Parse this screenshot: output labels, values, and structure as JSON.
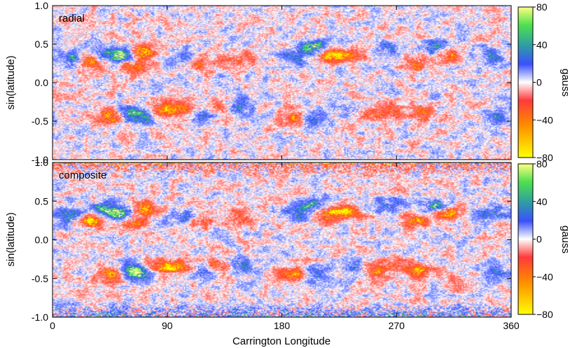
{
  "chart_data": [
    {
      "type": "heatmap",
      "panel_label": "radial",
      "ylabel": "sin(latitude)",
      "xlabel": "",
      "xlim": [
        0,
        360
      ],
      "ylim": [
        -1,
        1
      ],
      "x_ticks": [
        0,
        90,
        180,
        270,
        360
      ],
      "y_ticks": [
        "1.0",
        "0.5",
        "0.0",
        "-0.5",
        "-1.0"
      ],
      "colorbar": {
        "label": "gauss",
        "range": [
          -80,
          80
        ],
        "ticks": [
          "80",
          "40",
          "0",
          "−40",
          "−80"
        ]
      },
      "regions": [
        {
          "lon": 15,
          "lat": 0.3,
          "sign": 1,
          "peak": 60
        },
        {
          "lon": 28,
          "lat": 0.25,
          "sign": -1,
          "peak": 75
        },
        {
          "lon": 42,
          "lat": 0.4,
          "sign": 1,
          "peak": 55
        },
        {
          "lon": 55,
          "lat": 0.35,
          "sign": 1,
          "peak": 70
        },
        {
          "lon": 62,
          "lat": 0.2,
          "sign": -1,
          "peak": 60
        },
        {
          "lon": 70,
          "lat": 0.4,
          "sign": -1,
          "peak": 70
        },
        {
          "lon": 105,
          "lat": 0.3,
          "sign": 1,
          "peak": 40
        },
        {
          "lon": 115,
          "lat": 0.25,
          "sign": -1,
          "peak": 40
        },
        {
          "lon": 145,
          "lat": 0.3,
          "sign": -1,
          "peak": 45
        },
        {
          "lon": 190,
          "lat": 0.35,
          "sign": 1,
          "peak": 50
        },
        {
          "lon": 205,
          "lat": 0.45,
          "sign": 1,
          "peak": 80
        },
        {
          "lon": 215,
          "lat": 0.35,
          "sign": -1,
          "peak": 75
        },
        {
          "lon": 232,
          "lat": 0.35,
          "sign": -1,
          "peak": 60
        },
        {
          "lon": 262,
          "lat": 0.45,
          "sign": 1,
          "peak": 45
        },
        {
          "lon": 285,
          "lat": 0.25,
          "sign": -1,
          "peak": 60
        },
        {
          "lon": 300,
          "lat": 0.45,
          "sign": 1,
          "peak": 60
        },
        {
          "lon": 310,
          "lat": 0.35,
          "sign": -1,
          "peak": 55
        },
        {
          "lon": 345,
          "lat": 0.35,
          "sign": 1,
          "peak": 50
        },
        {
          "lon": 45,
          "lat": -0.45,
          "sign": -1,
          "peak": 70
        },
        {
          "lon": 60,
          "lat": -0.4,
          "sign": 1,
          "peak": 50
        },
        {
          "lon": 70,
          "lat": -0.45,
          "sign": 1,
          "peak": 50
        },
        {
          "lon": 85,
          "lat": -0.35,
          "sign": -1,
          "peak": 55
        },
        {
          "lon": 100,
          "lat": -0.35,
          "sign": -1,
          "peak": 60
        },
        {
          "lon": 118,
          "lat": -0.4,
          "sign": 1,
          "peak": 40
        },
        {
          "lon": 130,
          "lat": -0.32,
          "sign": -1,
          "peak": 50
        },
        {
          "lon": 145,
          "lat": -0.32,
          "sign": 1,
          "peak": 55
        },
        {
          "lon": 190,
          "lat": -0.45,
          "sign": -1,
          "peak": 60
        },
        {
          "lon": 205,
          "lat": -0.45,
          "sign": 1,
          "peak": 45
        },
        {
          "lon": 235,
          "lat": -0.35,
          "sign": 1,
          "peak": 45
        },
        {
          "lon": 250,
          "lat": -0.4,
          "sign": -1,
          "peak": 45
        },
        {
          "lon": 265,
          "lat": -0.35,
          "sign": -1,
          "peak": 45
        },
        {
          "lon": 290,
          "lat": -0.4,
          "sign": -1,
          "peak": 50
        },
        {
          "lon": 350,
          "lat": -0.45,
          "sign": 1,
          "peak": 40
        }
      ]
    },
    {
      "type": "heatmap",
      "panel_label": "composite",
      "ylabel": "sin(latitude)",
      "xlabel": "Carrington Longitude",
      "xlim": [
        0,
        360
      ],
      "ylim": [
        -1,
        1
      ],
      "x_ticks": [
        0,
        90,
        180,
        270,
        360
      ],
      "y_ticks": [
        "1.0",
        "0.5",
        "0.0",
        "-0.5",
        "-1.0"
      ],
      "colorbar": {
        "label": "gauss",
        "range": [
          -80,
          80
        ],
        "ticks": [
          "80",
          "40",
          "0",
          "−40",
          "−80"
        ]
      },
      "regions": [
        {
          "lon": 15,
          "lat": 0.3,
          "sign": 1,
          "peak": 65
        },
        {
          "lon": 28,
          "lat": 0.25,
          "sign": -1,
          "peak": 80
        },
        {
          "lon": 42,
          "lat": 0.4,
          "sign": 1,
          "peak": 60
        },
        {
          "lon": 55,
          "lat": 0.35,
          "sign": 1,
          "peak": 75
        },
        {
          "lon": 62,
          "lat": 0.2,
          "sign": -1,
          "peak": 70
        },
        {
          "lon": 70,
          "lat": 0.4,
          "sign": -1,
          "peak": 75
        },
        {
          "lon": 105,
          "lat": 0.3,
          "sign": 1,
          "peak": 45
        },
        {
          "lon": 115,
          "lat": 0.25,
          "sign": -1,
          "peak": 45
        },
        {
          "lon": 145,
          "lat": 0.3,
          "sign": -1,
          "peak": 50
        },
        {
          "lon": 190,
          "lat": 0.35,
          "sign": 1,
          "peak": 55
        },
        {
          "lon": 205,
          "lat": 0.45,
          "sign": 1,
          "peak": 80
        },
        {
          "lon": 215,
          "lat": 0.35,
          "sign": -1,
          "peak": 80
        },
        {
          "lon": 232,
          "lat": 0.35,
          "sign": -1,
          "peak": 65
        },
        {
          "lon": 262,
          "lat": 0.45,
          "sign": 1,
          "peak": 50
        },
        {
          "lon": 285,
          "lat": 0.25,
          "sign": -1,
          "peak": 65
        },
        {
          "lon": 300,
          "lat": 0.45,
          "sign": 1,
          "peak": 65
        },
        {
          "lon": 310,
          "lat": 0.35,
          "sign": -1,
          "peak": 60
        },
        {
          "lon": 345,
          "lat": 0.35,
          "sign": 1,
          "peak": 55
        },
        {
          "lon": 45,
          "lat": -0.45,
          "sign": -1,
          "peak": 75
        },
        {
          "lon": 60,
          "lat": -0.4,
          "sign": 1,
          "peak": 55
        },
        {
          "lon": 70,
          "lat": -0.45,
          "sign": 1,
          "peak": 55
        },
        {
          "lon": 85,
          "lat": -0.35,
          "sign": -1,
          "peak": 60
        },
        {
          "lon": 100,
          "lat": -0.35,
          "sign": -1,
          "peak": 65
        },
        {
          "lon": 118,
          "lat": -0.4,
          "sign": 1,
          "peak": 45
        },
        {
          "lon": 130,
          "lat": -0.32,
          "sign": -1,
          "peak": 55
        },
        {
          "lon": 145,
          "lat": -0.32,
          "sign": 1,
          "peak": 60
        },
        {
          "lon": 190,
          "lat": -0.45,
          "sign": -1,
          "peak": 65
        },
        {
          "lon": 205,
          "lat": -0.45,
          "sign": 1,
          "peak": 50
        },
        {
          "lon": 235,
          "lat": -0.35,
          "sign": 1,
          "peak": 50
        },
        {
          "lon": 250,
          "lat": -0.4,
          "sign": -1,
          "peak": 50
        },
        {
          "lon": 265,
          "lat": -0.35,
          "sign": -1,
          "peak": 50
        },
        {
          "lon": 290,
          "lat": -0.4,
          "sign": -1,
          "peak": 55
        },
        {
          "lon": 320,
          "lat": -0.55,
          "sign": -1,
          "peak": 40
        },
        {
          "lon": 350,
          "lat": -0.45,
          "sign": 1,
          "peak": 45
        }
      ]
    }
  ]
}
